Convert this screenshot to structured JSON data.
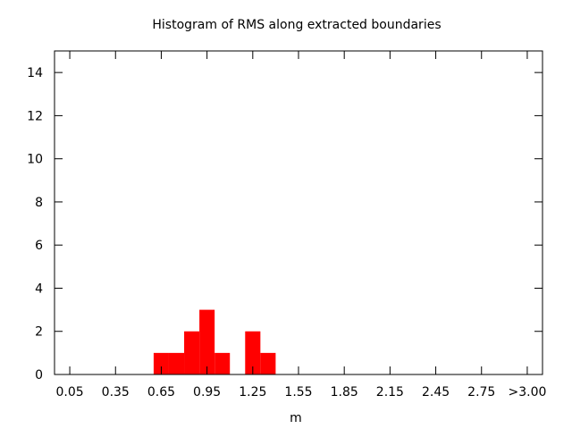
{
  "chart_data": {
    "type": "bar",
    "title": "Histogram of RMS along extracted boundaries",
    "xlabel": "m",
    "ylabel": "",
    "x_tick_labels": [
      "0.05",
      "0.35",
      "0.65",
      "0.95",
      "1.25",
      "1.55",
      "1.85",
      "2.15",
      "2.45",
      "2.75",
      ">3.00"
    ],
    "x_tick_values": [
      0.05,
      0.35,
      0.65,
      0.95,
      1.25,
      1.55,
      1.85,
      2.15,
      2.45,
      2.75,
      3.05
    ],
    "xlim": [
      -0.05,
      3.15
    ],
    "ylim": [
      0,
      15
    ],
    "y_ticks": [
      0,
      2,
      4,
      6,
      8,
      10,
      12,
      14
    ],
    "bin_width": 0.1,
    "bins": [
      {
        "x": 0.65,
        "value": 1
      },
      {
        "x": 0.75,
        "value": 1
      },
      {
        "x": 0.85,
        "value": 2
      },
      {
        "x": 0.95,
        "value": 3
      },
      {
        "x": 1.05,
        "value": 1
      },
      {
        "x": 1.15,
        "value": 0
      },
      {
        "x": 1.25,
        "value": 2
      },
      {
        "x": 1.35,
        "value": 1
      }
    ],
    "bar_color": "#ff0000",
    "grid": false,
    "legend": "none"
  }
}
